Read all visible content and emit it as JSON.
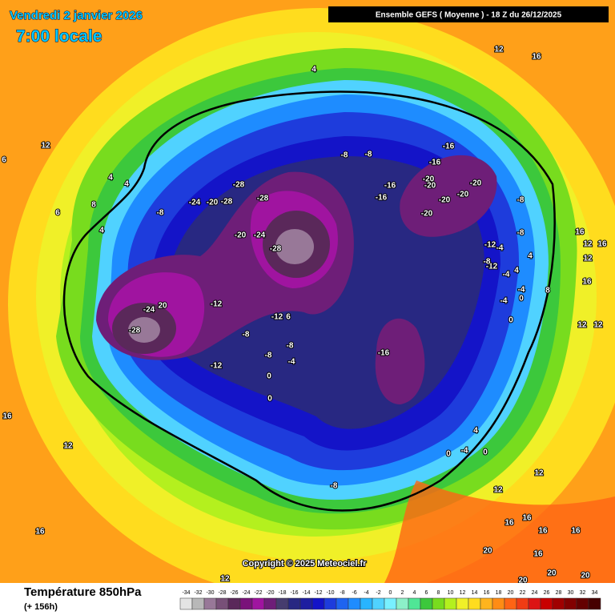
{
  "header": {
    "date": "Vendredi 2 janvier 2026",
    "time": "7:00 locale",
    "model": "Ensemble GEFS  ( Moyenne )  -  18 Z du 26/12/2025"
  },
  "map": {
    "copyright": "Copyright © 2025 Meteociel.fr",
    "contour_labels": [
      12,
      16,
      4,
      12,
      6,
      4,
      4,
      8,
      6,
      4,
      -8,
      -24,
      -20,
      -28,
      -28,
      -28,
      -20,
      -24,
      -28,
      -8,
      -8,
      -16,
      -16,
      -20,
      -20,
      -16,
      -16,
      -20,
      -20,
      -20,
      -20,
      -8,
      -8,
      -12,
      -12,
      -8,
      -4,
      -4,
      4,
      4,
      -4,
      0,
      -4,
      0,
      8,
      16,
      12,
      16,
      12,
      16,
      12,
      12,
      -12,
      20,
      -24,
      -28,
      -8,
      -12,
      6,
      -8,
      -8,
      -4,
      -12,
      0,
      0,
      -16,
      16,
      12,
      4,
      0,
      -4,
      0,
      -8,
      12,
      12,
      16,
      16,
      16,
      16,
      16,
      20,
      20,
      20,
      20,
      16,
      12
    ]
  },
  "footer": {
    "title": "Température 850hPa",
    "lead": "(+ 156h)",
    "scale": [
      -34,
      -32,
      -30,
      -28,
      -26,
      -24,
      -22,
      -20,
      -18,
      -16,
      -14,
      -12,
      -10,
      -8,
      -6,
      -4,
      -2,
      0,
      2,
      4,
      6,
      8,
      10,
      12,
      14,
      16,
      18,
      20,
      22,
      24,
      26,
      28,
      30,
      32,
      34
    ],
    "scale_colors": [
      "#e4e4e4",
      "#b8b8b8",
      "#987898",
      "#785078",
      "#5a285a",
      "#7a127a",
      "#a014a0",
      "#6e1e78",
      "#463c6e",
      "#282882",
      "#1e1ea0",
      "#1414c8",
      "#1e3cdc",
      "#1e64f0",
      "#1e8cff",
      "#28b4ff",
      "#50d2ff",
      "#78f0ff",
      "#8cf0c8",
      "#50e696",
      "#3cc83c",
      "#78dc1e",
      "#b4f01e",
      "#f0f028",
      "#ffdc1e",
      "#ffb41e",
      "#ff8c14",
      "#ff6414",
      "#f03c14",
      "#dc1414",
      "#c80000",
      "#a00000",
      "#820000",
      "#640000",
      "#460000"
    ]
  }
}
